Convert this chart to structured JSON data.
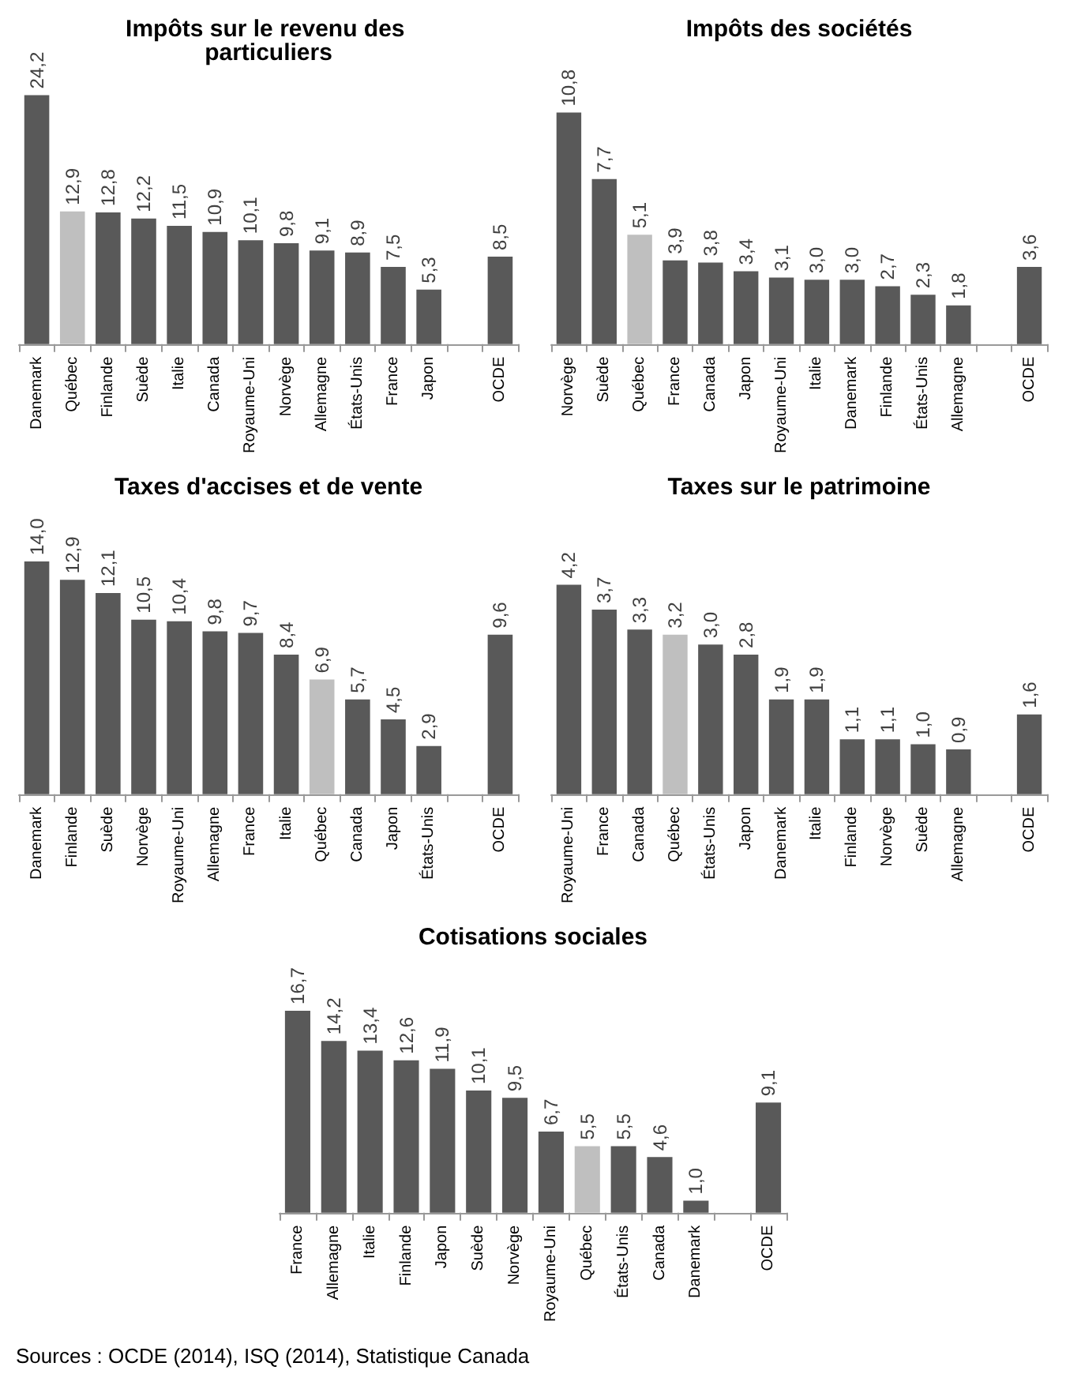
{
  "chart_data": [
    {
      "type": "bar",
      "title": "Impôts sur le revenu des particuliers",
      "categories": [
        "Danemark",
        "Québec",
        "Finlande",
        "Suède",
        "Italie",
        "Canada",
        "Royaume-Uni",
        "Norvège",
        "Allemagne",
        "États-Unis",
        "France",
        "Japon",
        null,
        "OCDE"
      ],
      "values": [
        24.2,
        12.9,
        12.8,
        12.2,
        11.5,
        10.9,
        10.1,
        9.8,
        9.1,
        8.9,
        7.5,
        5.3,
        null,
        8.5
      ],
      "value_labels": [
        "24,2",
        "12,9",
        "12,8",
        "12,2",
        "11,5",
        "10,9",
        "10,1",
        "9,8",
        "9,1",
        "8,9",
        "7,5",
        "5,3",
        null,
        "8,5"
      ],
      "colors": [
        "#595959",
        "#bfbfbf",
        "#595959",
        "#595959",
        "#595959",
        "#595959",
        "#595959",
        "#595959",
        "#595959",
        "#595959",
        "#595959",
        "#595959",
        "#595959",
        "#595959"
      ]
    },
    {
      "type": "bar",
      "title": "Impôts des sociétés",
      "categories": [
        "Norvège",
        "Suède",
        "Québec",
        "France",
        "Canada",
        "Japon",
        "Royaume-Uni",
        "Italie",
        "Danemark",
        "Finlande",
        "États-Unis",
        "Allemagne",
        null,
        "OCDE"
      ],
      "values": [
        10.8,
        7.7,
        5.1,
        3.9,
        3.8,
        3.4,
        3.1,
        3.0,
        3.0,
        2.7,
        2.3,
        1.8,
        null,
        3.6
      ],
      "value_labels": [
        "10,8",
        "7,7",
        "5,1",
        "3,9",
        "3,8",
        "3,4",
        "3,1",
        "3,0",
        "3,0",
        "2,7",
        "2,3",
        "1,8",
        null,
        "3,6"
      ],
      "colors": [
        "#595959",
        "#595959",
        "#bfbfbf",
        "#595959",
        "#595959",
        "#595959",
        "#595959",
        "#595959",
        "#595959",
        "#595959",
        "#595959",
        "#595959",
        "#595959",
        "#595959"
      ]
    },
    {
      "type": "bar",
      "title": "Taxes d'accises et de vente",
      "categories": [
        "Danemark",
        "Finlande",
        "Suède",
        "Norvège",
        "Royaume-Uni",
        "Allemagne",
        "France",
        "Italie",
        "Québec",
        "Canada",
        "Japon",
        "États-Unis",
        null,
        "OCDE"
      ],
      "values": [
        14.0,
        12.9,
        12.1,
        10.5,
        10.4,
        9.8,
        9.7,
        8.4,
        6.9,
        5.7,
        4.5,
        2.9,
        null,
        9.6
      ],
      "value_labels": [
        "14,0",
        "12,9",
        "12,1",
        "10,5",
        "10,4",
        "9,8",
        "9,7",
        "8,4",
        "6,9",
        "5,7",
        "4,5",
        "2,9",
        null,
        "9,6"
      ],
      "colors": [
        "#595959",
        "#595959",
        "#595959",
        "#595959",
        "#595959",
        "#595959",
        "#595959",
        "#595959",
        "#bfbfbf",
        "#595959",
        "#595959",
        "#595959",
        "#595959",
        "#595959"
      ]
    },
    {
      "type": "bar",
      "title": "Taxes sur le patrimoine",
      "categories": [
        "Royaume-Uni",
        "France",
        "Canada",
        "Québec",
        "États-Unis",
        "Japon",
        "Danemark",
        "Italie",
        "Finlande",
        "Norvège",
        "Suède",
        "Allemagne",
        null,
        "OCDE"
      ],
      "values": [
        4.2,
        3.7,
        3.3,
        3.2,
        3.0,
        2.8,
        1.9,
        1.9,
        1.1,
        1.1,
        1.0,
        0.9,
        null,
        1.6
      ],
      "value_labels": [
        "4,2",
        "3,7",
        "3,3",
        "3,2",
        "3,0",
        "2,8",
        "1,9",
        "1,9",
        "1,1",
        "1,1",
        "1,0",
        "0,9",
        null,
        "1,6"
      ],
      "colors": [
        "#595959",
        "#595959",
        "#595959",
        "#bfbfbf",
        "#595959",
        "#595959",
        "#595959",
        "#595959",
        "#595959",
        "#595959",
        "#595959",
        "#595959",
        "#595959",
        "#595959"
      ]
    },
    {
      "type": "bar",
      "title": "Cotisations sociales",
      "categories": [
        "France",
        "Allemagne",
        "Italie",
        "Finlande",
        "Japon",
        "Suède",
        "Norvège",
        "Royaume-Uni",
        "Québec",
        "États-Unis",
        "Canada",
        "Danemark",
        null,
        "OCDE"
      ],
      "values": [
        16.7,
        14.2,
        13.4,
        12.6,
        11.9,
        10.1,
        9.5,
        6.7,
        5.5,
        5.5,
        4.6,
        1.0,
        null,
        9.1
      ],
      "value_labels": [
        "16,7",
        "14,2",
        "13,4",
        "12,6",
        "11,9",
        "10,1",
        "9,5",
        "6,7",
        "5,5",
        "5,5",
        "4,6",
        "1,0",
        null,
        "9,1"
      ],
      "colors": [
        "#595959",
        "#595959",
        "#595959",
        "#595959",
        "#595959",
        "#595959",
        "#595959",
        "#595959",
        "#bfbfbf",
        "#595959",
        "#595959",
        "#595959",
        "#595959",
        "#595959"
      ],
      "annotations": [
        "Sources : OCDE (2014), ISQ (2014), Statistique Canada"
      ]
    }
  ]
}
